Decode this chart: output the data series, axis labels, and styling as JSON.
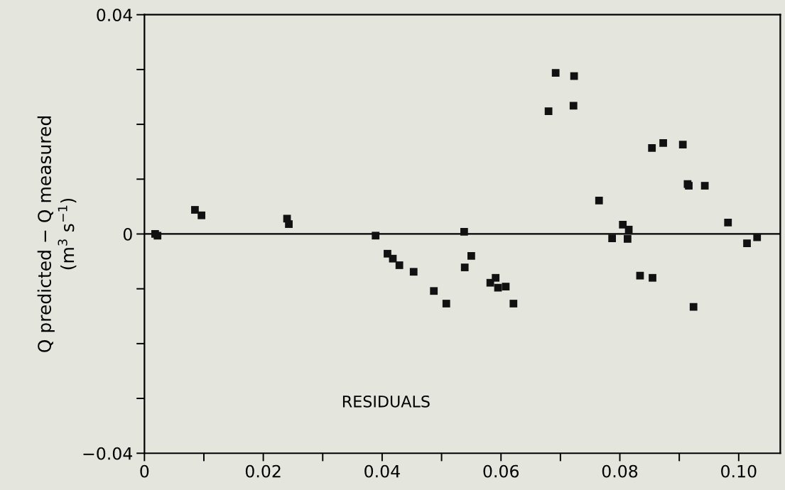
{
  "chart_data": {
    "type": "scatter",
    "ylabel": "Q predicted − Q measured\n(m$^{3}$ s$^{−1}$)",
    "annotations": [
      "RESIDUALS"
    ],
    "x": [
      0.0018,
      0.0022,
      0.0085,
      0.0096,
      0.024,
      0.0243,
      0.0389,
      0.0409,
      0.0418,
      0.0429,
      0.0453,
      0.0487,
      0.0508,
      0.0538,
      0.0539,
      0.055,
      0.0582,
      0.0591,
      0.0595,
      0.0608,
      0.0621,
      0.068,
      0.0692,
      0.0722,
      0.0723,
      0.0765,
      0.0787,
      0.0805,
      0.0813,
      0.0815,
      0.0834,
      0.0854,
      0.0855,
      0.0873,
      0.0906,
      0.0914,
      0.0916,
      0.0943,
      0.0924,
      0.0982,
      0.1014,
      0.1031
    ],
    "values": [
      0,
      -0.0003,
      0.0044,
      0.0034,
      0.0028,
      0.0018,
      -0.0003,
      -0.0036,
      -0.0045,
      -0.0057,
      -0.0069,
      -0.0104,
      -0.0127,
      0.0004,
      -0.0061,
      -0.004,
      -0.0089,
      -0.008,
      -0.0098,
      -0.0096,
      -0.0127,
      0.0224,
      0.0294,
      0.0234,
      0.0288,
      0.0061,
      -0.0008,
      0.0017,
      -0.0009,
      0.0008,
      -0.0076,
      0.0157,
      -0.008,
      0.0166,
      0.0163,
      0.0091,
      0.0088,
      0.0088,
      -0.0133,
      0.0021,
      -0.0017,
      -0.0006
    ],
    "color": "#111111",
    "marker": "square",
    "grid": false,
    "legend": false,
    "xlim": [
      0,
      0.107
    ],
    "ylim": [
      -0.04,
      0.04
    ],
    "xticks": [
      0,
      {
        "value": 0.01,
        "label": null
      },
      0.02,
      {
        "value": 0.03,
        "label": null
      },
      0.04,
      {
        "value": 0.05,
        "label": null
      },
      0.06,
      {
        "value": 0.07,
        "label": null
      },
      0.08,
      {
        "value": 0.09,
        "label": null
      },
      {
        "value": 0.1,
        "label": "0.10"
      }
    ],
    "yticks": [
      {
        "value": -0.04,
        "label": "−0.04"
      },
      {
        "value": -0.03,
        "label": null
      },
      {
        "value": -0.02,
        "label": null
      },
      {
        "value": -0.01,
        "label": null
      },
      0,
      {
        "value": 0.01,
        "label": null
      },
      {
        "value": 0.02,
        "label": null
      },
      {
        "value": 0.03,
        "label": null
      },
      0.04
    ],
    "ref_lines": [
      {
        "axis": "y",
        "value": 0
      }
    ]
  }
}
